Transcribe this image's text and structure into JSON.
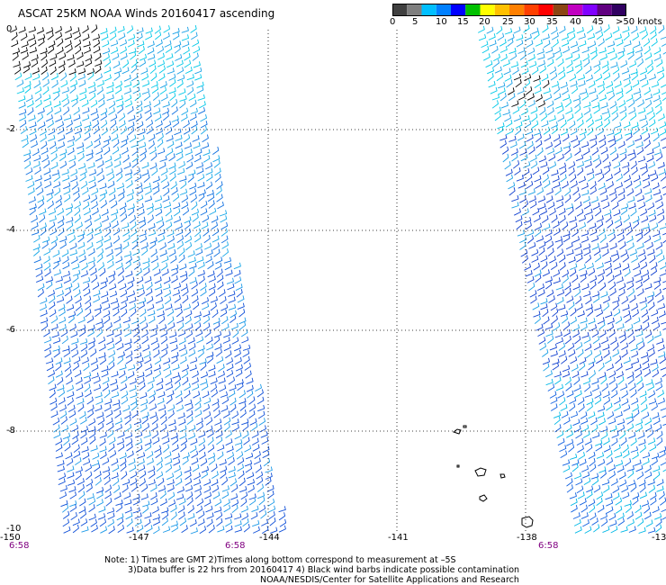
{
  "title": "ASCAT 25KM NOAA Winds 20160417 ascending",
  "legend": {
    "labels": [
      "0",
      "5",
      "10",
      "15",
      "20",
      "25",
      "30",
      "35",
      "40",
      "45",
      ">50 knots"
    ],
    "colors": [
      "#404040",
      "#7f7f7f",
      "#00bfff",
      "#0080ff",
      "#0000ff",
      "#00c000",
      "#ffff00",
      "#ffc000",
      "#ff8000",
      "#ff4000",
      "#ff0000",
      "#8b4513",
      "#c000c0",
      "#8000ff",
      "#600080",
      "#300060"
    ]
  },
  "map": {
    "lat_labels": [
      "0",
      "-2",
      "-4",
      "-6",
      "-8",
      "-10"
    ],
    "lon_labels": [
      "-150",
      "-147",
      "-144",
      "-141",
      "-138",
      "-13"
    ],
    "time_labels": [
      "6:58",
      "6:58",
      "6:58"
    ]
  },
  "notes": {
    "line1": "Note: 1) Times are GMT 2)Times along bottom correspond to measurement at –5S",
    "line2": "3)Data buffer is 22 hrs from 20160417 4) Black wind barbs indicate possible contamination",
    "line3": "NOAA/NESDIS/Center for Satellite Applications and Research"
  }
}
